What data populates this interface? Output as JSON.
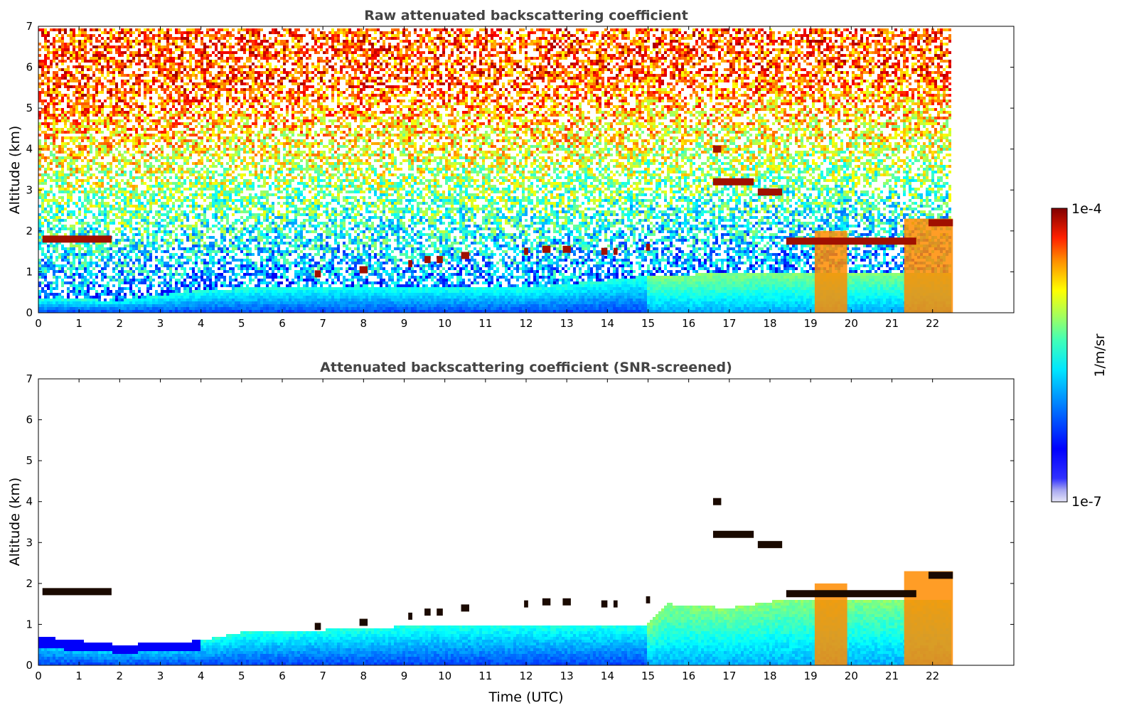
{
  "chart_data": [
    {
      "type": "heatmap",
      "title": "Raw attenuated backscattering coefficient",
      "xlabel": "",
      "ylabel": "Altitude (km)",
      "xlim": [
        0,
        24
      ],
      "ylim": [
        0,
        7
      ],
      "x_ticks": [
        0,
        1,
        2,
        3,
        4,
        5,
        6,
        7,
        8,
        9,
        10,
        11,
        12,
        13,
        14,
        15,
        16,
        17,
        18,
        19,
        20,
        21,
        22
      ],
      "y_ticks": [
        0,
        1,
        2,
        3,
        4,
        5,
        6,
        7
      ],
      "data_end_time": 22.5,
      "screening": "none",
      "boundary_layer_top_km": [
        [
          0,
          0.35
        ],
        [
          2,
          0.3
        ],
        [
          4,
          0.55
        ],
        [
          5,
          0.6
        ],
        [
          8,
          0.65
        ],
        [
          12,
          0.6
        ],
        [
          15,
          0.9
        ],
        [
          18,
          1.0
        ],
        [
          22.5,
          1.0
        ]
      ],
      "cloud_features": [
        {
          "t_start": 0.1,
          "t_end": 1.8,
          "alt_km": 1.8
        },
        {
          "t_start": 6.8,
          "t_end": 6.95,
          "alt_km": 0.95
        },
        {
          "t_start": 7.9,
          "t_end": 8.1,
          "alt_km": 1.05
        },
        {
          "t_start": 9.1,
          "t_end": 9.2,
          "alt_km": 1.2
        },
        {
          "t_start": 9.5,
          "t_end": 9.65,
          "alt_km": 1.3
        },
        {
          "t_start": 9.8,
          "t_end": 9.95,
          "alt_km": 1.3
        },
        {
          "t_start": 10.4,
          "t_end": 10.6,
          "alt_km": 1.4
        },
        {
          "t_start": 11.95,
          "t_end": 12.05,
          "alt_km": 1.5
        },
        {
          "t_start": 12.4,
          "t_end": 12.6,
          "alt_km": 1.55
        },
        {
          "t_start": 12.9,
          "t_end": 13.1,
          "alt_km": 1.55
        },
        {
          "t_start": 13.85,
          "t_end": 14.0,
          "alt_km": 1.5
        },
        {
          "t_start": 14.15,
          "t_end": 14.25,
          "alt_km": 1.5
        },
        {
          "t_start": 14.95,
          "t_end": 15.05,
          "alt_km": 1.6
        },
        {
          "t_start": 16.6,
          "t_end": 16.8,
          "alt_km": 4.0
        },
        {
          "t_start": 16.6,
          "t_end": 17.6,
          "alt_km": 3.2
        },
        {
          "t_start": 17.7,
          "t_end": 18.3,
          "alt_km": 2.95
        },
        {
          "t_start": 18.4,
          "t_end": 21.6,
          "alt_km": 1.75
        },
        {
          "t_start": 21.9,
          "t_end": 22.5,
          "alt_km": 2.2
        }
      ],
      "precipitation_fall_streaks": [
        {
          "t_start": 19.1,
          "t_end": 19.9,
          "top_km": 2.0
        },
        {
          "t_start": 21.3,
          "t_end": 22.5,
          "top_km": 2.3
        }
      ]
    },
    {
      "type": "heatmap",
      "title": "Attenuated backscattering coefficient (SNR-screened)",
      "xlabel": "Time (UTC)",
      "ylabel": "Altitude (km)",
      "xlim": [
        0,
        24
      ],
      "ylim": [
        0,
        7
      ],
      "x_ticks": [
        0,
        1,
        2,
        3,
        4,
        5,
        6,
        7,
        8,
        9,
        10,
        11,
        12,
        13,
        14,
        15,
        16,
        17,
        18,
        19,
        20,
        21,
        22
      ],
      "y_ticks": [
        0,
        1,
        2,
        3,
        4,
        5,
        6,
        7
      ],
      "data_end_time": 22.5,
      "screening": "SNR",
      "boundary_layer_top_km": [
        [
          0,
          0.7
        ],
        [
          2,
          0.5
        ],
        [
          4,
          0.6
        ],
        [
          5,
          0.8
        ],
        [
          8,
          0.9
        ],
        [
          10,
          1.0
        ],
        [
          15,
          1.0
        ],
        [
          15.5,
          1.5
        ],
        [
          17,
          1.4
        ],
        [
          18.3,
          1.6
        ],
        [
          22.5,
          1.6
        ]
      ]
    }
  ],
  "colorbar": {
    "label": "1/m/sr",
    "min_label": "1e-7",
    "max_label": "1e-4",
    "colormap": "jet",
    "scale": "log",
    "range": [
      1e-07,
      0.0001
    ]
  }
}
